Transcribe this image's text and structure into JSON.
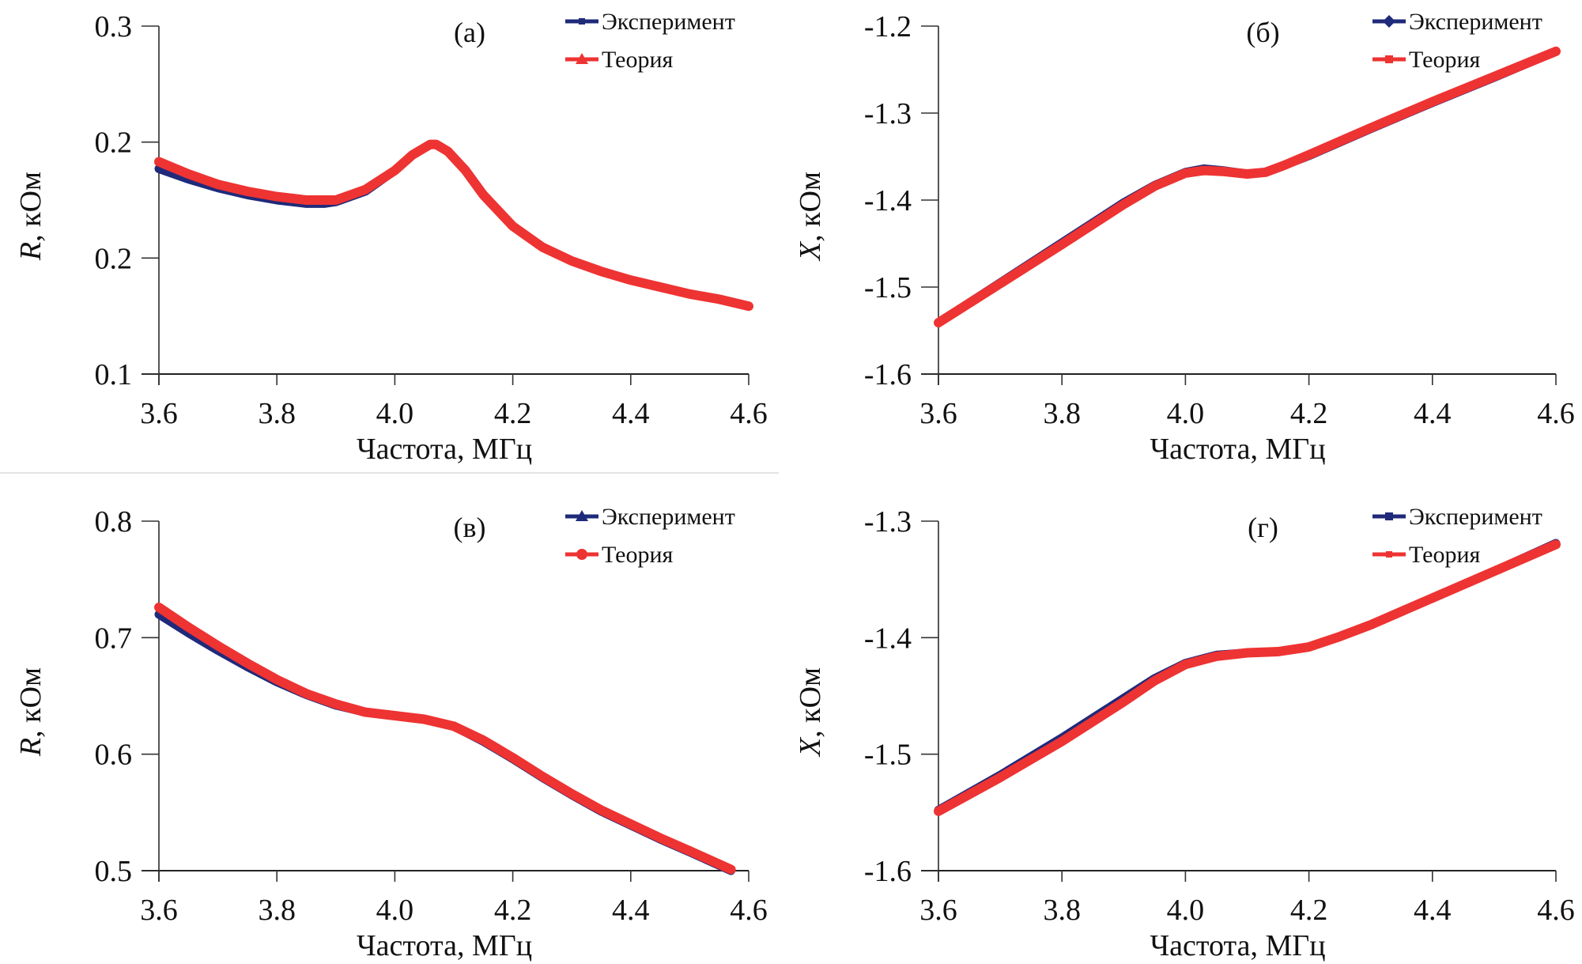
{
  "chart_data": [
    {
      "type": "line",
      "panel_label": "(а)",
      "xlabel": "Частота, МГц",
      "ylabel_var": "R",
      "ylabel_unit": ", кОм",
      "xlim": [
        3.6,
        4.6
      ],
      "ylim": [
        0.1,
        0.3
      ],
      "x_ticks": [
        "3.6",
        "3.8",
        "4.0",
        "4.2",
        "4.4",
        "4.6"
      ],
      "y_ticks": [
        "0.3",
        "0.2",
        "0.2",
        "0.1"
      ],
      "grid": false,
      "legend_position": "top-right",
      "series": [
        {
          "name": "Эксперимент",
          "color": "#1f2a7a",
          "marker": "dash",
          "x": [
            3.6,
            3.65,
            3.7,
            3.75,
            3.8,
            3.85,
            3.88,
            3.9,
            3.95,
            4.0,
            4.03,
            4.06,
            4.07,
            4.09,
            4.12,
            4.15,
            4.2,
            4.25,
            4.3,
            4.35,
            4.4,
            4.45,
            4.5,
            4.55,
            4.6
          ],
          "y": [
            0.218,
            0.212,
            0.207,
            0.203,
            0.2,
            0.198,
            0.198,
            0.199,
            0.205,
            0.217,
            0.226,
            0.232,
            0.232,
            0.228,
            0.217,
            0.203,
            0.185,
            0.173,
            0.165,
            0.159,
            0.154,
            0.15,
            0.146,
            0.143,
            0.139
          ]
        },
        {
          "name": "Теория",
          "color": "#ee3333",
          "marker": "triangle",
          "x": [
            3.6,
            3.65,
            3.7,
            3.75,
            3.8,
            3.85,
            3.88,
            3.9,
            3.95,
            4.0,
            4.03,
            4.06,
            4.07,
            4.09,
            4.12,
            4.15,
            4.2,
            4.25,
            4.3,
            4.35,
            4.4,
            4.45,
            4.5,
            4.55,
            4.6
          ],
          "y": [
            0.222,
            0.215,
            0.209,
            0.205,
            0.202,
            0.2,
            0.2,
            0.2,
            0.206,
            0.217,
            0.226,
            0.232,
            0.232,
            0.228,
            0.217,
            0.203,
            0.185,
            0.173,
            0.165,
            0.159,
            0.154,
            0.15,
            0.146,
            0.143,
            0.139
          ]
        }
      ]
    },
    {
      "type": "line",
      "panel_label": "(б)",
      "xlabel": "Частота, МГц",
      "ylabel_var": "X",
      "ylabel_unit": ", кОм",
      "xlim": [
        3.6,
        4.6
      ],
      "ylim": [
        -1.6,
        -1.2
      ],
      "x_ticks": [
        "3.6",
        "3.8",
        "4.0",
        "4.2",
        "4.4",
        "4.6"
      ],
      "y_ticks": [
        "-1.2",
        "-1.3",
        "-1.4",
        "-1.5",
        "-1.6"
      ],
      "grid": false,
      "legend_position": "top-right",
      "series": [
        {
          "name": "Эксперимент",
          "color": "#1f2a7a",
          "marker": "diamond",
          "x": [
            3.6,
            3.7,
            3.8,
            3.9,
            3.95,
            4.0,
            4.03,
            4.06,
            4.1,
            4.13,
            4.16,
            4.2,
            4.3,
            4.4,
            4.5,
            4.6
          ],
          "y": [
            -1.541,
            -1.495,
            -1.449,
            -1.403,
            -1.383,
            -1.368,
            -1.364,
            -1.366,
            -1.37,
            -1.368,
            -1.36,
            -1.349,
            -1.318,
            -1.288,
            -1.259,
            -1.229
          ]
        },
        {
          "name": "Теория",
          "color": "#ee3333",
          "marker": "square",
          "x": [
            3.6,
            3.7,
            3.8,
            3.9,
            3.95,
            4.0,
            4.03,
            4.06,
            4.1,
            4.13,
            4.16,
            4.2,
            4.3,
            4.4,
            4.5,
            4.6
          ],
          "y": [
            -1.541,
            -1.496,
            -1.451,
            -1.405,
            -1.384,
            -1.369,
            -1.366,
            -1.367,
            -1.37,
            -1.368,
            -1.36,
            -1.348,
            -1.317,
            -1.287,
            -1.258,
            -1.229
          ]
        }
      ]
    },
    {
      "type": "line",
      "panel_label": "(в)",
      "xlabel": "Частота, МГц",
      "ylabel_var": "R",
      "ylabel_unit": ", кОм",
      "xlim": [
        3.6,
        4.6
      ],
      "ylim": [
        0.5,
        0.8
      ],
      "x_ticks": [
        "3.6",
        "3.8",
        "4.0",
        "4.2",
        "4.4",
        "4.6"
      ],
      "y_ticks": [
        "0.8",
        "0.7",
        "0.6",
        "0.5"
      ],
      "grid": false,
      "legend_position": "top-right",
      "series": [
        {
          "name": "Эксперимент",
          "color": "#1f2a7a",
          "marker": "triangle",
          "x": [
            3.6,
            3.65,
            3.7,
            3.75,
            3.8,
            3.85,
            3.9,
            3.95,
            4.0,
            4.05,
            4.1,
            4.15,
            4.2,
            4.25,
            4.3,
            4.35,
            4.4,
            4.45,
            4.5,
            4.57
          ],
          "y": [
            0.72,
            0.704,
            0.689,
            0.675,
            0.662,
            0.651,
            0.642,
            0.636,
            0.633,
            0.63,
            0.624,
            0.611,
            0.596,
            0.58,
            0.565,
            0.551,
            0.539,
            0.527,
            0.516,
            0.5
          ]
        },
        {
          "name": "Теория",
          "color": "#ee3333",
          "marker": "circle",
          "x": [
            3.6,
            3.65,
            3.7,
            3.75,
            3.8,
            3.85,
            3.9,
            3.95,
            4.0,
            4.05,
            4.1,
            4.15,
            4.2,
            4.25,
            4.3,
            4.35,
            4.4,
            4.45,
            4.5,
            4.57
          ],
          "y": [
            0.726,
            0.709,
            0.693,
            0.678,
            0.664,
            0.652,
            0.643,
            0.636,
            0.633,
            0.63,
            0.624,
            0.612,
            0.597,
            0.581,
            0.566,
            0.552,
            0.54,
            0.528,
            0.517,
            0.501
          ]
        }
      ]
    },
    {
      "type": "line",
      "panel_label": "(г)",
      "xlabel": "Частота, МГц",
      "ylabel_var": "X",
      "ylabel_unit": ", кОм",
      "xlim": [
        3.6,
        4.6
      ],
      "ylim": [
        -1.6,
        -1.3
      ],
      "x_ticks": [
        "3.6",
        "3.8",
        "4.0",
        "4.2",
        "4.4",
        "4.6"
      ],
      "y_ticks": [
        "-1.3",
        "-1.4",
        "-1.5",
        "-1.6"
      ],
      "grid": false,
      "legend_position": "top-right",
      "series": [
        {
          "name": "Эксперимент",
          "color": "#1f2a7a",
          "marker": "square",
          "x": [
            3.6,
            3.7,
            3.8,
            3.9,
            3.95,
            4.0,
            4.05,
            4.1,
            4.15,
            4.2,
            4.25,
            4.3,
            4.4,
            4.5,
            4.6
          ],
          "y": [
            -1.548,
            -1.518,
            -1.486,
            -1.452,
            -1.435,
            -1.422,
            -1.415,
            -1.413,
            -1.412,
            -1.408,
            -1.399,
            -1.389,
            -1.366,
            -1.343,
            -1.319
          ]
        },
        {
          "name": "Теория",
          "color": "#ee3333",
          "marker": "cross",
          "x": [
            3.6,
            3.7,
            3.8,
            3.9,
            3.95,
            4.0,
            4.05,
            4.1,
            4.15,
            4.2,
            4.25,
            4.3,
            4.4,
            4.5,
            4.6
          ],
          "y": [
            -1.549,
            -1.52,
            -1.489,
            -1.455,
            -1.437,
            -1.423,
            -1.416,
            -1.413,
            -1.412,
            -1.408,
            -1.399,
            -1.389,
            -1.366,
            -1.343,
            -1.32
          ]
        }
      ]
    }
  ]
}
